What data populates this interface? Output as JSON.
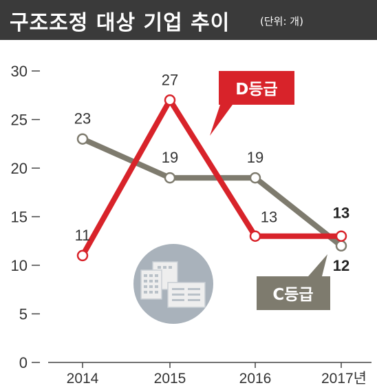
{
  "header": {
    "title": "구조조정 대상 기업 추이",
    "unit": "(단위: 개)"
  },
  "colors": {
    "header_bg": "#3a3a3a",
    "grade_d": "#d8232a",
    "grade_c": "#7e7b6e",
    "icon_circle": "#a9b2bb"
  },
  "icon": {
    "name": "building-icon"
  },
  "chart_data": {
    "type": "line",
    "categories": [
      "2014",
      "2015",
      "2016",
      "2017년"
    ],
    "ylim": [
      0,
      30
    ],
    "yticks": [
      "0",
      "5",
      "10",
      "15",
      "20",
      "25",
      "30"
    ],
    "series": [
      {
        "name": "D등급",
        "values": [
          11,
          27,
          13,
          13
        ],
        "labels": [
          "11",
          "27",
          "13",
          "13"
        ],
        "color": "#d8232a"
      },
      {
        "name": "C등급",
        "values": [
          23,
          19,
          19,
          12
        ],
        "labels": [
          "23",
          "19",
          "19",
          "12"
        ],
        "color": "#7e7b6e"
      }
    ]
  }
}
